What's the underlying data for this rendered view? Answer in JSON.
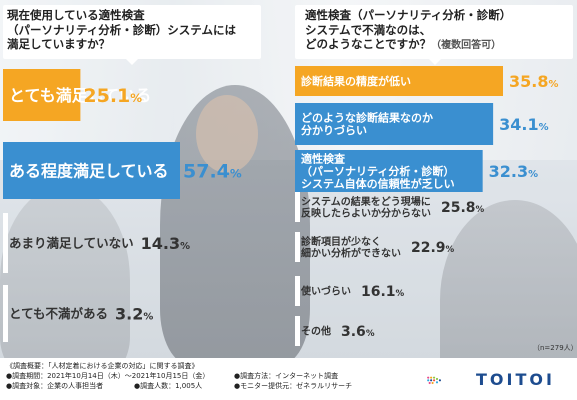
{
  "left": {
    "question_lines": [
      "現在使用している適性検査",
      "（パーソナリティ分析・診断）システムには",
      "満足していますか？"
    ],
    "chart_data": {
      "type": "bar",
      "orientation": "horizontal",
      "categories": [
        "とても満足している",
        "ある程度満足している",
        "あまり満足していない",
        "とても不満がある"
      ],
      "values": [
        25.1,
        57.4,
        14.3,
        3.2
      ],
      "value_labels": [
        "25.1",
        "57.4",
        "14.3",
        "3.2"
      ],
      "unit": "%",
      "colors": [
        "#f5a623",
        "#3a8fd0",
        "#ffffff",
        "#ffffff"
      ],
      "label_colors": [
        "#ffffff",
        "#ffffff",
        "#333333",
        "#333333"
      ],
      "value_colors": [
        "#f5a623",
        "#3a8fd0",
        "#333333",
        "#333333"
      ]
    }
  },
  "right": {
    "question_lines": [
      "適性検査（パーソナリティ分析・診断）",
      "システムで不満なのは、",
      "どのようなことですか？"
    ],
    "question_note": "（複数回答可）",
    "chart_data": {
      "type": "bar",
      "orientation": "horizontal",
      "categories": [
        "診断結果の精度が低い",
        "どのような診断結果なのか 分かりづらい",
        "適性検査 （パーソナリティ分析・診断） システム自体の信頼性が乏しい",
        "システムの結果をどう現場に 反映したらよいか分からない",
        "診断項目が少なく 細かい分析ができない",
        "使いづらい",
        "その他"
      ],
      "label_lines": [
        [
          "診断結果の精度が低い"
        ],
        [
          "どのような診断結果なのか",
          "分かりづらい"
        ],
        [
          "適性検査",
          "（パーソナリティ分析・診断）",
          "システム自体の信頼性が乏しい"
        ],
        [
          "システムの結果をどう現場に",
          "反映したらよいか分からない"
        ],
        [
          "診断項目が少なく",
          "細かい分析ができない"
        ],
        [
          "使いづらい"
        ],
        [
          "その他"
        ]
      ],
      "values": [
        35.8,
        34.1,
        32.3,
        25.8,
        22.9,
        16.1,
        3.6
      ],
      "value_labels": [
        "35.8",
        "34.1",
        "32.3",
        "25.8",
        "22.9",
        "16.1",
        "3.6"
      ],
      "unit": "%",
      "colors": [
        "#f5a623",
        "#3a8fd0",
        "#3a8fd0",
        "#ffffff",
        "#ffffff",
        "#ffffff",
        "#ffffff"
      ],
      "label_colors": [
        "#ffffff",
        "#ffffff",
        "#ffffff",
        "#333333",
        "#333333",
        "#333333",
        "#333333"
      ],
      "value_colors": [
        "#f5a623",
        "#3a8fd0",
        "#3a8fd0",
        "#333333",
        "#333333",
        "#333333",
        "#333333"
      ]
    },
    "sample_size": "（n=279人）"
  },
  "footer": {
    "survey_title": "《調査概要：「人材定着における企業の対応」に関する調査》",
    "period": "●調査期間：2021年10月14日（木）〜2021年10月15日（金）",
    "method": "●調査方法：インターネット調査",
    "target": "●調査対象：企業の人事担当者",
    "respondents": "●調査人数：1,005人",
    "provider": "●モニター提供元：ゼネラルリサーチ"
  },
  "logo": {
    "text": "TOITOI",
    "colors": [
      "#e94b8a",
      "#f5a623",
      "#8cc63f",
      "#2ea8e0",
      "#1d4c8f",
      "#f04e37"
    ]
  }
}
